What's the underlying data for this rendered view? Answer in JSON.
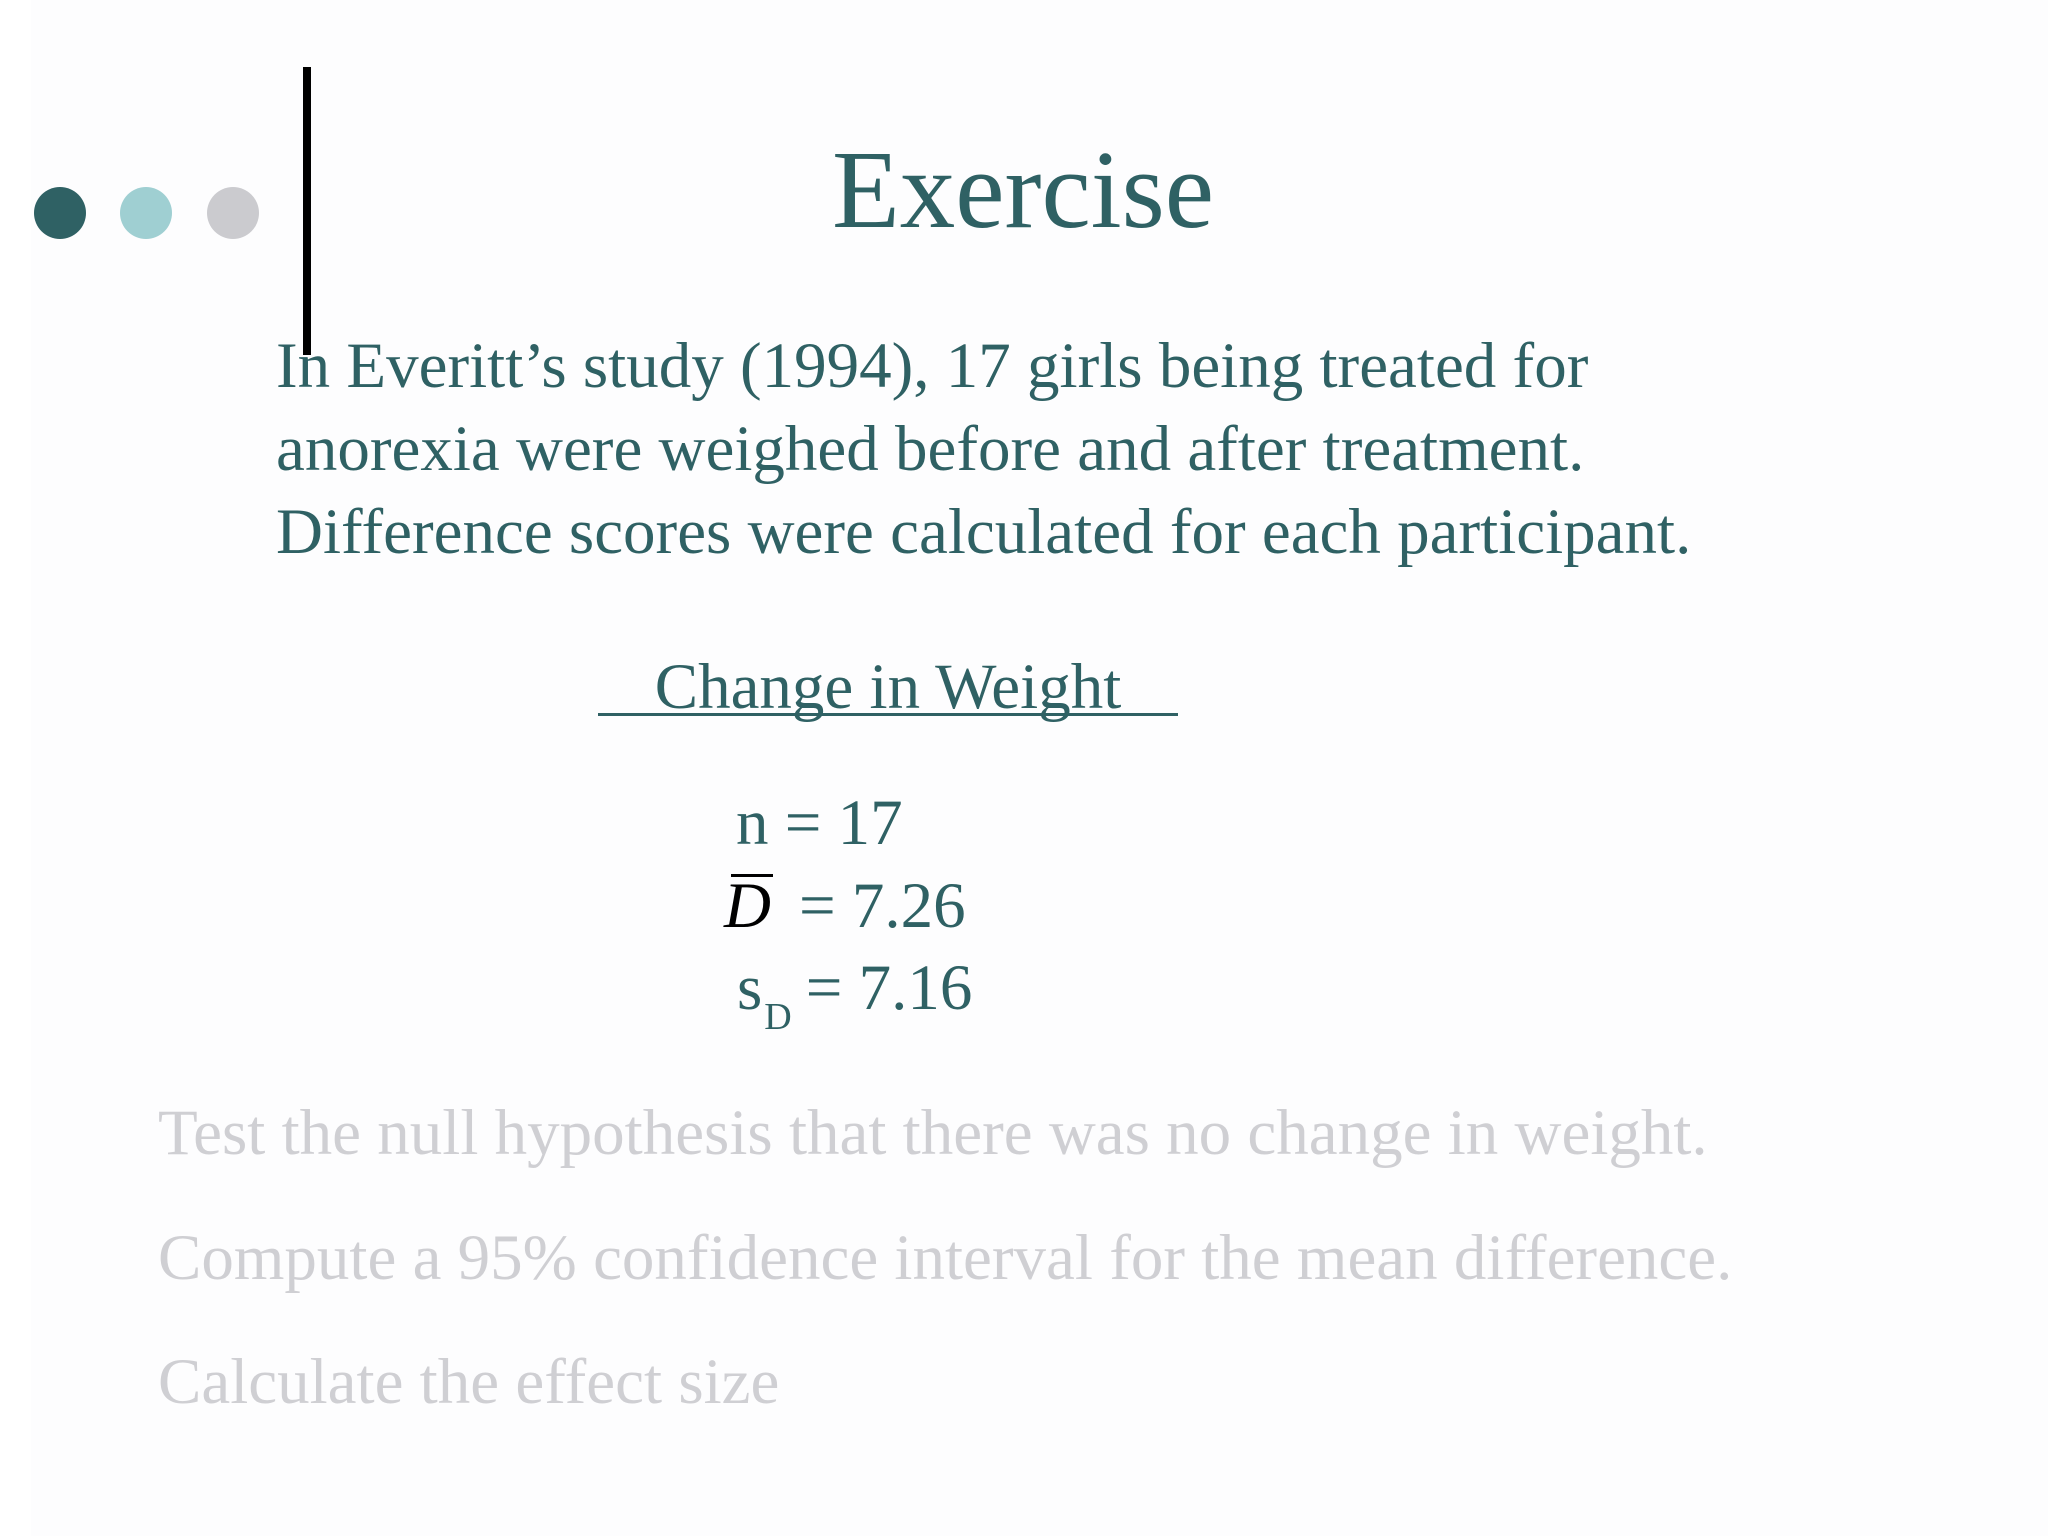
{
  "colors": {
    "primary_text": "#2f6164",
    "faded_text": "#cfcfd3",
    "dot_dark": "#2f6164",
    "dot_light": "#9fcfd2",
    "dot_gray": "#cbcbcf",
    "bar": "#000000"
  },
  "slide": {
    "title": "Exercise",
    "intro_lines": [
      "In Everitt’s study (1994), 17 girls being treated for",
      "anorexia were weighed before and after treatment.",
      "Difference scores were calculated for each participant."
    ],
    "table_header": "Change in Weight",
    "stats": {
      "n_label": "n = 17",
      "d_symbol": "D",
      "d_value": "= 7.26",
      "s_symbol": "s",
      "s_subscript": "D",
      "s_value": "= 7.16"
    },
    "tasks": [
      "Test the null hypothesis that there was no change in weight.",
      "Compute a 95% confidence interval for the mean difference.",
      "Calculate the effect size"
    ]
  }
}
